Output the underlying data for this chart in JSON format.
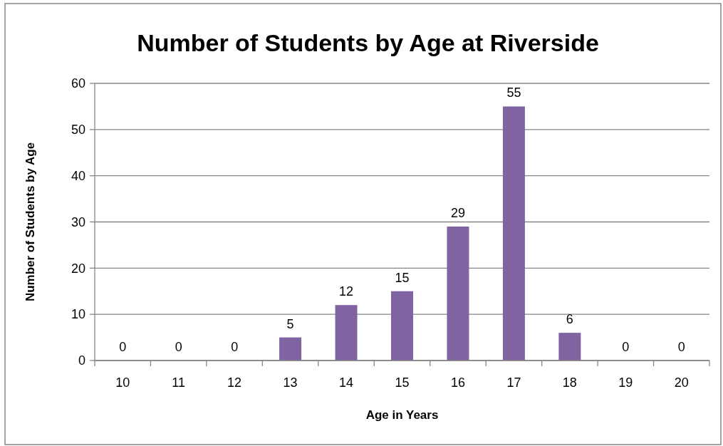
{
  "chart_data": {
    "type": "bar",
    "title": "Number of Students by Age at Riverside",
    "xlabel": "Age in Years",
    "ylabel": "Number of Students by Age",
    "categories": [
      "10",
      "11",
      "12",
      "13",
      "14",
      "15",
      "16",
      "17",
      "18",
      "19",
      "20"
    ],
    "values": [
      0,
      0,
      0,
      5,
      12,
      15,
      29,
      55,
      6,
      0,
      0
    ],
    "color": "#8064a2",
    "ylim": [
      0,
      60
    ],
    "yticks": [
      0,
      10,
      20,
      30,
      40,
      50,
      60
    ],
    "grid": "y",
    "data_labels": true
  }
}
